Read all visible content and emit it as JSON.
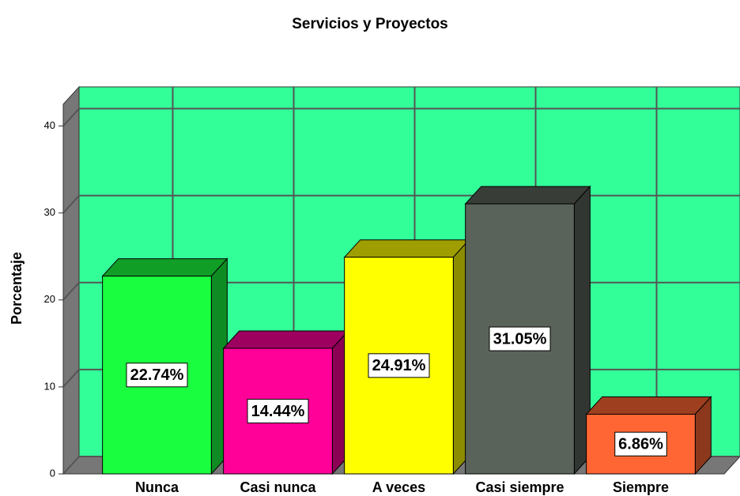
{
  "chart_data": {
    "type": "bar3d",
    "title": "Servicios y Proyectos",
    "y_label": "Porcentaje",
    "categories": [
      "Nunca",
      "Casi nunca",
      "A veces",
      "Casi siempre",
      "Siempre"
    ],
    "values": [
      22.74,
      14.44,
      24.91,
      31.05,
      6.86
    ],
    "value_labels": [
      "22.74%",
      "14.44%",
      "24.91%",
      "31.05%",
      "6.86%"
    ],
    "colors": [
      "#19ff3f",
      "#ff0099",
      "#ffff00",
      "#5a635a",
      "#ff6633"
    ],
    "background": "#33ff99",
    "ylim": [
      0,
      42.5
    ],
    "yticks": [
      0,
      10,
      20,
      30,
      40
    ],
    "grid": true
  }
}
